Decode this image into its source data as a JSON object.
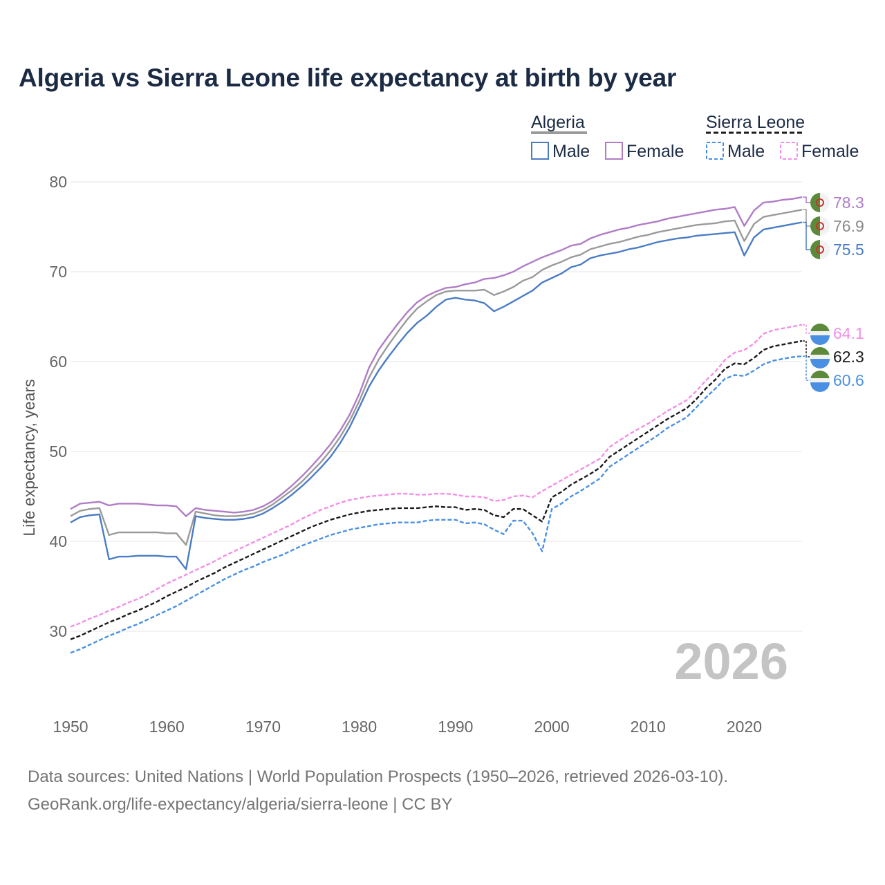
{
  "chart_data": {
    "type": "line",
    "title": "Algeria vs Sierra Leone life expectancy at birth by year",
    "xlabel": "",
    "ylabel": "Life expectancy, years",
    "xlim": [
      1950,
      2026
    ],
    "ylim": [
      24,
      84
    ],
    "x_ticks": [
      1950,
      1960,
      1970,
      1980,
      1990,
      2000,
      2010,
      2020
    ],
    "y_ticks": [
      30,
      40,
      50,
      60,
      70,
      80
    ],
    "year_watermark": "2026",
    "legend": {
      "groups": [
        {
          "country": "Algeria",
          "style": "solid",
          "items": [
            "Male",
            "Female"
          ]
        },
        {
          "country": "Sierra Leone",
          "style": "dashed",
          "items": [
            "Male",
            "Female"
          ]
        }
      ]
    },
    "x": [
      1950,
      1951,
      1952,
      1953,
      1954,
      1955,
      1956,
      1957,
      1958,
      1959,
      1960,
      1961,
      1962,
      1963,
      1964,
      1965,
      1966,
      1967,
      1968,
      1969,
      1970,
      1971,
      1972,
      1973,
      1974,
      1975,
      1976,
      1977,
      1978,
      1979,
      1980,
      1981,
      1982,
      1983,
      1984,
      1985,
      1986,
      1987,
      1988,
      1989,
      1990,
      1991,
      1992,
      1993,
      1994,
      1995,
      1996,
      1997,
      1998,
      1999,
      2000,
      2001,
      2002,
      2003,
      2004,
      2005,
      2006,
      2007,
      2008,
      2009,
      2010,
      2011,
      2012,
      2013,
      2014,
      2015,
      2016,
      2017,
      2018,
      2019,
      2020,
      2021,
      2022,
      2023,
      2024,
      2025,
      2026
    ],
    "series": [
      {
        "name": "Algeria Female",
        "color": "#b07cc6",
        "dash": "solid",
        "end_label": "78.3",
        "values": [
          43.6,
          44.2,
          44.3,
          44.4,
          44.0,
          44.2,
          44.2,
          44.2,
          44.1,
          44.0,
          44.0,
          43.9,
          42.8,
          43.7,
          43.5,
          43.4,
          43.3,
          43.2,
          43.3,
          43.5,
          43.9,
          44.5,
          45.3,
          46.2,
          47.2,
          48.3,
          49.5,
          50.8,
          52.3,
          54.1,
          56.4,
          59.3,
          61.3,
          62.8,
          64.2,
          65.5,
          66.6,
          67.3,
          67.8,
          68.2,
          68.3,
          68.6,
          68.8,
          69.2,
          69.3,
          69.6,
          70.0,
          70.6,
          71.1,
          71.6,
          72.0,
          72.4,
          72.9,
          73.1,
          73.7,
          74.1,
          74.4,
          74.7,
          74.9,
          75.2,
          75.4,
          75.6,
          75.9,
          76.1,
          76.3,
          76.5,
          76.7,
          76.9,
          77.0,
          77.2,
          75.1,
          76.8,
          77.7,
          77.8,
          78.0,
          78.1,
          78.3
        ]
      },
      {
        "name": "Algeria Total",
        "color": "#9a9a9a",
        "dash": "solid",
        "end_label": "76.9",
        "values": [
          42.8,
          43.4,
          43.6,
          43.7,
          40.7,
          41.0,
          41.0,
          41.0,
          41.0,
          41.0,
          40.9,
          40.9,
          39.6,
          43.3,
          43.1,
          42.9,
          42.8,
          42.8,
          42.9,
          43.1,
          43.5,
          44.1,
          44.9,
          45.7,
          46.6,
          47.7,
          48.8,
          50.1,
          51.6,
          53.4,
          55.6,
          58.2,
          60.2,
          61.8,
          63.3,
          64.7,
          65.9,
          66.7,
          67.4,
          67.8,
          67.9,
          67.9,
          67.9,
          68.0,
          67.4,
          67.8,
          68.3,
          69.0,
          69.4,
          70.2,
          70.7,
          71.1,
          71.6,
          71.9,
          72.5,
          72.8,
          73.1,
          73.3,
          73.6,
          73.9,
          74.1,
          74.4,
          74.6,
          74.8,
          75.0,
          75.2,
          75.3,
          75.4,
          75.6,
          75.7,
          73.4,
          75.3,
          76.1,
          76.3,
          76.5,
          76.7,
          76.9
        ]
      },
      {
        "name": "Algeria Male",
        "color": "#4a7cc4",
        "dash": "solid",
        "end_label": "75.5",
        "values": [
          42.1,
          42.7,
          42.9,
          43.0,
          38.0,
          38.3,
          38.3,
          38.4,
          38.4,
          38.4,
          38.3,
          38.3,
          36.9,
          42.8,
          42.6,
          42.5,
          42.4,
          42.4,
          42.5,
          42.7,
          43.1,
          43.7,
          44.4,
          45.2,
          46.1,
          47.1,
          48.2,
          49.4,
          50.9,
          52.7,
          54.9,
          57.2,
          59.0,
          60.5,
          61.9,
          63.2,
          64.3,
          65.1,
          66.1,
          66.9,
          67.1,
          66.9,
          66.8,
          66.5,
          65.6,
          66.1,
          66.7,
          67.3,
          67.9,
          68.8,
          69.3,
          69.8,
          70.5,
          70.8,
          71.5,
          71.8,
          72.0,
          72.2,
          72.5,
          72.7,
          73.0,
          73.3,
          73.5,
          73.7,
          73.8,
          74.0,
          74.1,
          74.2,
          74.3,
          74.4,
          71.8,
          73.8,
          74.7,
          74.9,
          75.1,
          75.3,
          75.5
        ]
      },
      {
        "name": "Sierra Leone Female",
        "color": "#f28fe6",
        "dash": "dashed",
        "end_label": "64.1",
        "values": [
          30.5,
          30.9,
          31.4,
          31.8,
          32.3,
          32.7,
          33.2,
          33.6,
          34.1,
          34.7,
          35.3,
          35.8,
          36.3,
          36.8,
          37.3,
          37.8,
          38.4,
          38.9,
          39.4,
          39.9,
          40.4,
          40.9,
          41.4,
          41.9,
          42.5,
          43.0,
          43.5,
          43.9,
          44.3,
          44.6,
          44.8,
          45.0,
          45.1,
          45.2,
          45.3,
          45.3,
          45.2,
          45.2,
          45.3,
          45.3,
          45.2,
          45.0,
          45.0,
          44.9,
          44.5,
          44.6,
          45.0,
          45.1,
          44.9,
          45.6,
          46.2,
          46.8,
          47.4,
          48.0,
          48.6,
          49.2,
          50.5,
          51.2,
          51.9,
          52.5,
          53.1,
          53.8,
          54.5,
          55.1,
          55.7,
          56.7,
          57.9,
          58.9,
          60.2,
          61.0,
          61.3,
          62.0,
          63.1,
          63.5,
          63.7,
          63.9,
          64.1
        ]
      },
      {
        "name": "Sierra Leone Total",
        "color": "#1a1a1a",
        "dash": "dashed",
        "end_label": "62.3",
        "values": [
          29.1,
          29.5,
          30.0,
          30.5,
          31.0,
          31.4,
          31.9,
          32.3,
          32.8,
          33.3,
          33.9,
          34.4,
          34.9,
          35.5,
          36.0,
          36.5,
          37.1,
          37.6,
          38.1,
          38.6,
          39.1,
          39.6,
          40.1,
          40.6,
          41.1,
          41.6,
          42.0,
          42.4,
          42.7,
          43.0,
          43.2,
          43.4,
          43.5,
          43.6,
          43.7,
          43.7,
          43.7,
          43.8,
          43.9,
          43.8,
          43.8,
          43.5,
          43.6,
          43.5,
          42.9,
          42.7,
          43.6,
          43.6,
          42.9,
          42.2,
          44.9,
          45.5,
          46.3,
          46.9,
          47.5,
          48.2,
          49.4,
          50.1,
          50.8,
          51.5,
          52.2,
          52.9,
          53.6,
          54.2,
          54.8,
          55.8,
          57.0,
          58.0,
          59.2,
          59.8,
          59.7,
          60.4,
          61.3,
          61.7,
          61.9,
          62.1,
          62.3
        ]
      },
      {
        "name": "Sierra Leone Male",
        "color": "#4a90e2",
        "dash": "dashed",
        "end_label": "60.6",
        "values": [
          27.6,
          28.0,
          28.5,
          29.0,
          29.5,
          29.9,
          30.4,
          30.8,
          31.3,
          31.8,
          32.3,
          32.8,
          33.4,
          34.0,
          34.6,
          35.2,
          35.8,
          36.3,
          36.8,
          37.2,
          37.7,
          38.1,
          38.5,
          39.0,
          39.5,
          39.9,
          40.3,
          40.7,
          41.0,
          41.3,
          41.5,
          41.7,
          41.9,
          42.0,
          42.1,
          42.1,
          42.1,
          42.3,
          42.4,
          42.4,
          42.4,
          42.0,
          42.1,
          41.9,
          41.3,
          40.8,
          42.3,
          42.3,
          40.9,
          38.9,
          43.6,
          44.2,
          45.0,
          45.6,
          46.3,
          47.0,
          48.3,
          49.0,
          49.7,
          50.4,
          51.1,
          51.8,
          52.6,
          53.2,
          53.8,
          54.9,
          56.0,
          57.0,
          58.1,
          58.5,
          58.4,
          59.0,
          59.7,
          60.1,
          60.3,
          60.5,
          60.6
        ]
      }
    ]
  },
  "source": {
    "line1": "Data sources: United Nations | World Population Prospects (1950–2026, retrieved 2026-03-10).",
    "line2": "GeoRank.org/life-expectancy/algeria/sierra-leone | CC BY"
  }
}
